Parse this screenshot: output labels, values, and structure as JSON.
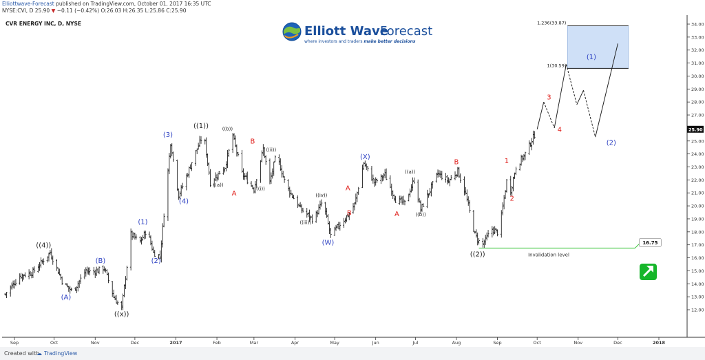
{
  "header": {
    "publisher": "Elliottwave-Forecast",
    "published_text": "published on TradingView.com, October 01, 2017 16:35 UTC",
    "ticker_line_pre": "NYSE:CVI, D  25.90",
    "ticker_change": "−0.11 (−0.42%)",
    "ohlc": "O:26.03  H:26.35  L:25.86  C:25.90"
  },
  "chart_title": "CVR ENERGY INC, D, NYSE",
  "logo": {
    "name": "Elliott Wave Forecast",
    "word1": "Elliott Wave",
    "word2": "Forecast",
    "tagline_pre": "where investors and traders",
    "tagline_em": "make better decisions"
  },
  "footer": {
    "created_with": "Created with",
    "tradingview": "TradingView"
  },
  "colors": {
    "bars": "#222222",
    "blue_labels": "#2b3fc2",
    "red_labels": "#e0201c",
    "black_labels": "#222222",
    "invalidation": "#3cc43c",
    "target_box": "#cfe0f7",
    "target_box_border": "#9bb7e0",
    "price_tag": "#111111",
    "arrow_badge": "#16b62a"
  },
  "chart_data": {
    "type": "ohlc",
    "title": "CVR ENERGY INC, D, NYSE",
    "ylim": [
      11,
      35
    ],
    "y_ticks": [
      "12.00",
      "13.00",
      "14.00",
      "15.00",
      "16.00",
      "17.00",
      "18.00",
      "19.00",
      "20.00",
      "21.00",
      "22.00",
      "23.00",
      "24.00",
      "25.00",
      "26.00",
      "27.00",
      "28.00",
      "29.00",
      "30.00",
      "31.00",
      "32.00",
      "33.00",
      "34.00"
    ],
    "x_ticks": [
      "Sep",
      "Oct",
      "Nov",
      "Dec",
      "2017",
      "Feb",
      "Mar",
      "Apr",
      "May",
      "Jun",
      "Jul",
      "Aug",
      "Sep",
      "Oct",
      "Nov",
      "Dec",
      "2018"
    ],
    "last_price": "25.90",
    "path": [
      [
        "2016-08-25",
        13.2
      ],
      [
        "2016-09-05",
        14.6
      ],
      [
        "2016-09-15",
        14.9
      ],
      [
        "2016-09-28",
        16.4
      ],
      [
        "2016-10-08",
        14.0
      ],
      [
        "2016-10-15",
        13.4
      ],
      [
        "2016-10-25",
        15.0
      ],
      [
        "2016-10-30",
        14.9
      ],
      [
        "2016-11-08",
        15.2
      ],
      [
        "2016-11-15",
        13.0
      ],
      [
        "2016-11-21",
        12.1
      ],
      [
        "2016-11-28",
        17.8
      ],
      [
        "2016-12-05",
        17.2
      ],
      [
        "2016-12-10",
        18.2
      ],
      [
        "2016-12-15",
        16.4
      ],
      [
        "2016-12-20",
        16.1
      ],
      [
        "2016-12-28",
        24.9
      ],
      [
        "2017-01-03",
        20.8
      ],
      [
        "2017-01-08",
        22.0
      ],
      [
        "2017-01-15",
        23.9
      ],
      [
        "2017-01-22",
        25.6
      ],
      [
        "2017-01-27",
        21.8
      ],
      [
        "2017-02-07",
        23.0
      ],
      [
        "2017-02-13",
        25.4
      ],
      [
        "2017-02-20",
        22.5
      ],
      [
        "2017-03-01",
        21.3
      ],
      [
        "2017-03-08",
        24.4
      ],
      [
        "2017-03-13",
        21.8
      ],
      [
        "2017-03-18",
        24.0
      ],
      [
        "2017-03-25",
        21.6
      ],
      [
        "2017-04-05",
        19.8
      ],
      [
        "2017-04-15",
        18.9
      ],
      [
        "2017-04-22",
        20.4
      ],
      [
        "2017-04-28",
        17.7
      ],
      [
        "2017-05-05",
        18.6
      ],
      [
        "2017-05-12",
        19.4
      ],
      [
        "2017-05-16",
        20.1
      ],
      [
        "2017-05-23",
        23.3
      ],
      [
        "2017-05-31",
        21.8
      ],
      [
        "2017-06-08",
        22.4
      ],
      [
        "2017-06-16",
        20.5
      ],
      [
        "2017-06-23",
        20.2
      ],
      [
        "2017-06-30",
        22.0
      ],
      [
        "2017-07-05",
        19.7
      ],
      [
        "2017-07-18",
        22.5
      ],
      [
        "2017-07-26",
        21.9
      ],
      [
        "2017-08-02",
        22.7
      ],
      [
        "2017-08-08",
        20.9
      ],
      [
        "2017-08-15",
        17.8
      ],
      [
        "2017-08-20",
        16.9
      ],
      [
        "2017-08-28",
        18.2
      ],
      [
        "2017-09-02",
        17.9
      ],
      [
        "2017-09-08",
        21.9
      ],
      [
        "2017-09-10",
        20.7
      ],
      [
        "2017-09-15",
        23.0
      ],
      [
        "2017-09-22",
        24.0
      ],
      [
        "2017-10-01",
        25.9
      ]
    ],
    "projection": [
      [
        "2017-10-06",
        28.0
      ],
      [
        "2017-10-14",
        26.0
      ],
      [
        "2017-10-23",
        30.9
      ],
      [
        "2017-10-31",
        27.8
      ],
      [
        "2017-11-05",
        28.9
      ],
      [
        "2017-11-14",
        25.3
      ]
    ],
    "projection_after": [
      [
        "2017-11-14",
        25.3
      ],
      [
        "2017-12-01",
        32.5
      ]
    ],
    "target_zone": {
      "start": "2017-10-24",
      "end": "2017-12-09",
      "low": 30.59,
      "high": 33.87,
      "label_low": "1(30.59)",
      "label_high": "1.236(33.87)"
    },
    "invalidation": {
      "start": "2017-08-18",
      "end": "2017-12-14",
      "value": 16.75,
      "label": "Invalidation level",
      "tag": "16.75"
    },
    "labels": [
      {
        "t": "((4))",
        "d": "2016-09-23",
        "y": 16.8,
        "c": "black"
      },
      {
        "t": "(A)",
        "d": "2016-10-10",
        "y": 12.8,
        "c": "blue"
      },
      {
        "t": "(B)",
        "d": "2016-11-05",
        "y": 15.6,
        "c": "blue"
      },
      {
        "t": "((x))",
        "d": "2016-11-21",
        "y": 11.5,
        "c": "black"
      },
      {
        "t": "(1)",
        "d": "2016-12-07",
        "y": 18.6,
        "c": "blue"
      },
      {
        "t": "(2)",
        "d": "2016-12-17",
        "y": 15.6,
        "c": "blue"
      },
      {
        "t": "(3)",
        "d": "2016-12-26",
        "y": 25.3,
        "c": "blue"
      },
      {
        "t": "(4)",
        "d": "2017-01-07",
        "y": 20.2,
        "c": "blue"
      },
      {
        "t": "((1))",
        "d": "2017-01-20",
        "y": 26.0,
        "c": "black"
      },
      {
        "t": "((a))",
        "d": "2017-02-02",
        "y": 21.5,
        "c": "black",
        "s": "sm"
      },
      {
        "t": "((b))",
        "d": "2017-02-09",
        "y": 25.8,
        "c": "black",
        "s": "sm"
      },
      {
        "t": "A",
        "d": "2017-02-14",
        "y": 20.8,
        "c": "red"
      },
      {
        "t": "B",
        "d": "2017-02-28",
        "y": 24.8,
        "c": "red"
      },
      {
        "t": "((i))",
        "d": "2017-03-06",
        "y": 21.2,
        "c": "black",
        "s": "sm"
      },
      {
        "t": "((ii))",
        "d": "2017-03-14",
        "y": 24.2,
        "c": "black",
        "s": "sm"
      },
      {
        "t": "((iii))",
        "d": "2017-04-09",
        "y": 18.6,
        "c": "black",
        "s": "sm"
      },
      {
        "t": "((iv))",
        "d": "2017-04-21",
        "y": 20.7,
        "c": "black",
        "s": "sm"
      },
      {
        "t": "(W)",
        "d": "2017-04-26",
        "y": 17.0,
        "c": "blue"
      },
      {
        "t": "A",
        "d": "2017-05-11",
        "y": 21.2,
        "c": "red"
      },
      {
        "t": "B",
        "d": "2017-05-12",
        "y": 19.3,
        "c": "red"
      },
      {
        "t": "(X)",
        "d": "2017-05-24",
        "y": 23.6,
        "c": "blue"
      },
      {
        "t": "A",
        "d": "2017-06-17",
        "y": 19.2,
        "c": "red"
      },
      {
        "t": "((a))",
        "d": "2017-06-27",
        "y": 22.5,
        "c": "black",
        "s": "sm"
      },
      {
        "t": "((b))",
        "d": "2017-07-05",
        "y": 19.2,
        "c": "black",
        "s": "sm"
      },
      {
        "t": "B",
        "d": "2017-08-01",
        "y": 23.2,
        "c": "red"
      },
      {
        "t": "((2))",
        "d": "2017-08-17",
        "y": 16.1,
        "c": "black"
      },
      {
        "t": "1",
        "d": "2017-09-08",
        "y": 23.3,
        "c": "red"
      },
      {
        "t": "2",
        "d": "2017-09-12",
        "y": 20.4,
        "c": "red"
      },
      {
        "t": "3",
        "d": "2017-10-10",
        "y": 28.2,
        "c": "red"
      },
      {
        "t": "4",
        "d": "2017-10-18",
        "y": 25.7,
        "c": "red"
      },
      {
        "t": "(1)",
        "d": "2017-11-11",
        "y": 31.3,
        "c": "blue"
      },
      {
        "t": "(2)",
        "d": "2017-11-26",
        "y": 24.7,
        "c": "blue"
      }
    ]
  }
}
